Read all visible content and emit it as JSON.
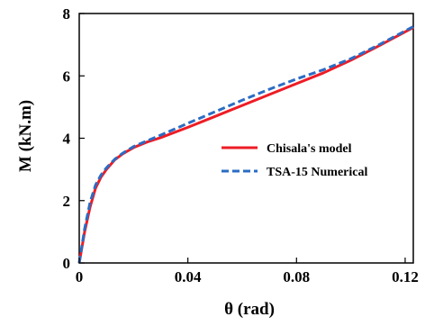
{
  "chart_data": {
    "type": "line",
    "xlabel": "θ (rad)",
    "ylabel": "M (kN.m)",
    "xlim": [
      0,
      0.123
    ],
    "ylim": [
      0,
      8
    ],
    "xticks": [
      0,
      0.04,
      0.08,
      0.12
    ],
    "xtick_labels": [
      "0",
      "0.04",
      "0.08",
      "0.12"
    ],
    "yticks": [
      0,
      2,
      4,
      6,
      8
    ],
    "ytick_labels": [
      "0",
      "2",
      "4",
      "6",
      "8"
    ],
    "grid": false,
    "legend_position": "center-right",
    "series": [
      {
        "name": "Chisala's model",
        "color": "#ee1c25",
        "style": "solid",
        "x": [
          0,
          0.002,
          0.004,
          0.006,
          0.008,
          0.01,
          0.013,
          0.016,
          0.02,
          0.025,
          0.03,
          0.04,
          0.05,
          0.06,
          0.07,
          0.08,
          0.09,
          0.1,
          0.11,
          0.123
        ],
        "y": [
          0,
          1.0,
          1.8,
          2.4,
          2.75,
          3.0,
          3.3,
          3.5,
          3.7,
          3.88,
          4.02,
          4.35,
          4.7,
          5.05,
          5.4,
          5.75,
          6.1,
          6.5,
          6.95,
          7.55
        ]
      },
      {
        "name": "TSA-15 Numerical",
        "color": "#2b6cc4",
        "style": "dashed",
        "x": [
          0,
          0.002,
          0.004,
          0.006,
          0.008,
          0.01,
          0.013,
          0.016,
          0.02,
          0.025,
          0.03,
          0.04,
          0.05,
          0.06,
          0.07,
          0.08,
          0.09,
          0.1,
          0.11,
          0.123
        ],
        "y": [
          0,
          1.1,
          1.95,
          2.5,
          2.82,
          3.05,
          3.32,
          3.52,
          3.73,
          3.92,
          4.1,
          4.48,
          4.85,
          5.22,
          5.57,
          5.9,
          6.2,
          6.55,
          6.98,
          7.58
        ]
      }
    ]
  }
}
